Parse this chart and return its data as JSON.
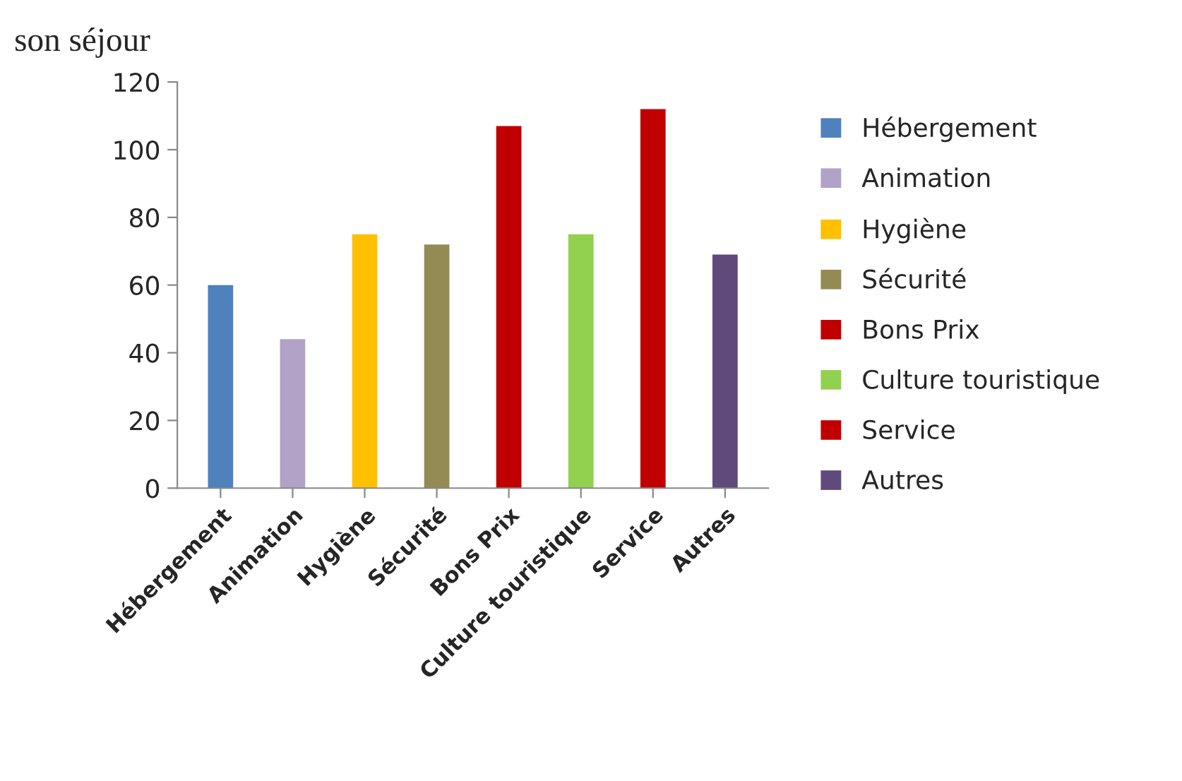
{
  "chart_data": {
    "type": "bar",
    "title": "son séjour",
    "categories": [
      "Hébergement",
      "Animation",
      "Hygiène",
      "Sécurité",
      "Bons Prix",
      "Culture touristique",
      "Service",
      "Autres"
    ],
    "series": [
      {
        "name": "Hébergement",
        "color": "#4f81bd",
        "values": [
          60,
          null,
          null,
          null,
          null,
          null,
          null,
          null
        ]
      },
      {
        "name": "Animation",
        "color": "#b3a2c7",
        "values": [
          null,
          44,
          null,
          null,
          null,
          null,
          null,
          null
        ]
      },
      {
        "name": "Hygiène",
        "color": "#ffc000",
        "values": [
          null,
          null,
          75,
          null,
          null,
          null,
          null,
          null
        ]
      },
      {
        "name": "Sécurité",
        "color": "#948a54",
        "values": [
          null,
          null,
          null,
          72,
          null,
          null,
          null,
          null
        ]
      },
      {
        "name": "Bons Prix",
        "color": "#c00000",
        "values": [
          null,
          null,
          null,
          null,
          107,
          null,
          null,
          null
        ]
      },
      {
        "name": "Culture touristique",
        "color": "#92d050",
        "values": [
          null,
          null,
          null,
          null,
          null,
          75,
          null,
          null
        ]
      },
      {
        "name": "Service",
        "color": "#c00000",
        "values": [
          null,
          null,
          null,
          null,
          null,
          null,
          112,
          null
        ]
      },
      {
        "name": "Autres",
        "color": "#604a7b",
        "values": [
          null,
          null,
          null,
          null,
          null,
          null,
          null,
          69
        ]
      }
    ],
    "ylim": [
      0,
      120
    ],
    "yticks": [
      0,
      20,
      40,
      60,
      80,
      100,
      120
    ],
    "grid": false,
    "legend": "right"
  }
}
